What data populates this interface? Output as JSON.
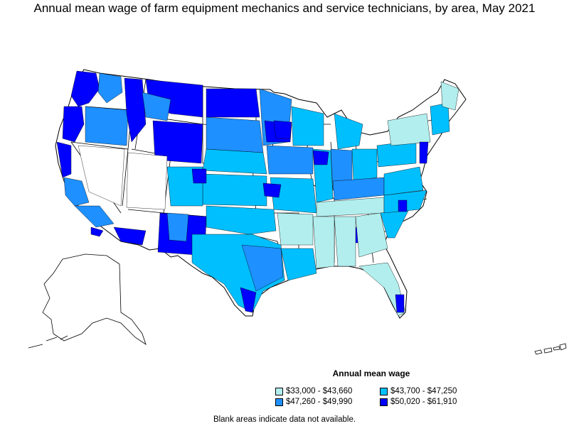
{
  "title": "Annual mean wage of farm equipment mechanics and service technicians, by area, May 2021",
  "legend": {
    "title": "Annual mean wage",
    "items": [
      {
        "label": "$33,000 - $43,660",
        "color": "#b2eeee"
      },
      {
        "label": "$43,700 - $47,250",
        "color": "#00bfff"
      },
      {
        "label": "$47,260 - $49,990",
        "color": "#1e90ff"
      },
      {
        "label": "$50,020 - $61,910",
        "color": "#0000ff"
      }
    ]
  },
  "footnote": "Blank areas indicate data not available.",
  "colors": {
    "no_data": "#ffffff",
    "border": "#000000"
  }
}
